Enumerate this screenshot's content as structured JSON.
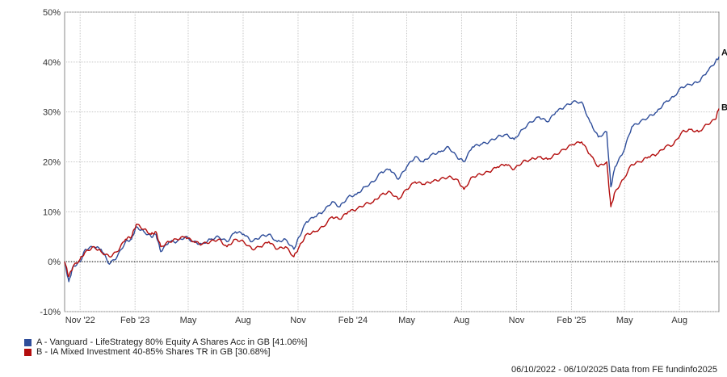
{
  "chart_data": {
    "type": "line",
    "xlabel": "",
    "ylabel": "",
    "ylim": [
      -10,
      50
    ],
    "y_ticks": [
      "-10%",
      "0%",
      "10%",
      "20%",
      "30%",
      "40%",
      "50%"
    ],
    "x_ticks": [
      "Nov '22",
      "Feb '23",
      "May",
      "Aug",
      "Nov",
      "Feb '24",
      "May",
      "Aug",
      "Nov",
      "Feb '25",
      "May",
      "Aug"
    ],
    "x_tick_dates": [
      "2022-11-01",
      "2023-02-01",
      "2023-05-01",
      "2023-08-01",
      "2023-11-01",
      "2024-02-01",
      "2024-05-01",
      "2024-08-01",
      "2024-11-01",
      "2025-02-01",
      "2025-05-01",
      "2025-08-01"
    ],
    "x_range": [
      "2022-10-06",
      "2025-10-06"
    ],
    "grid": true,
    "series": [
      {
        "name": "A - Vanguard - LifeStrategy 80% Equity A Shares Acc in GB [41.06%]",
        "label": "A",
        "color": "#2e4d9a",
        "points": [
          [
            "2022-10-06",
            0
          ],
          [
            "2022-10-13",
            -4
          ],
          [
            "2022-10-20",
            -1
          ],
          [
            "2022-11-01",
            0
          ],
          [
            "2022-11-10",
            2.5
          ],
          [
            "2022-11-24",
            3
          ],
          [
            "2022-12-06",
            2.5
          ],
          [
            "2022-12-20",
            -0.5
          ],
          [
            "2023-01-02",
            1
          ],
          [
            "2023-01-16",
            4
          ],
          [
            "2023-01-26",
            4.5
          ],
          [
            "2023-02-03",
            7
          ],
          [
            "2023-02-16",
            6
          ],
          [
            "2023-02-28",
            5
          ],
          [
            "2023-03-08",
            5.5
          ],
          [
            "2023-03-16",
            2
          ],
          [
            "2023-03-30",
            4
          ],
          [
            "2023-04-12",
            4
          ],
          [
            "2023-04-26",
            5
          ],
          [
            "2023-05-10",
            4
          ],
          [
            "2023-05-24",
            3.5
          ],
          [
            "2023-06-07",
            4.5
          ],
          [
            "2023-06-21",
            5
          ],
          [
            "2023-07-05",
            4
          ],
          [
            "2023-07-19",
            6
          ],
          [
            "2023-08-02",
            5.5
          ],
          [
            "2023-08-16",
            4
          ],
          [
            "2023-08-30",
            5
          ],
          [
            "2023-09-13",
            5.5
          ],
          [
            "2023-09-27",
            4
          ],
          [
            "2023-10-11",
            4.5
          ],
          [
            "2023-10-25",
            2.5
          ],
          [
            "2023-11-03",
            5
          ],
          [
            "2023-11-15",
            8
          ],
          [
            "2023-11-29",
            9
          ],
          [
            "2023-12-13",
            10
          ],
          [
            "2023-12-28",
            12
          ],
          [
            "2024-01-10",
            11
          ],
          [
            "2024-01-24",
            13
          ],
          [
            "2024-02-07",
            13.5
          ],
          [
            "2024-02-21",
            15
          ],
          [
            "2024-03-06",
            16
          ],
          [
            "2024-03-20",
            18
          ],
          [
            "2024-04-03",
            18.5
          ],
          [
            "2024-04-17",
            16.5
          ],
          [
            "2024-05-01",
            19
          ],
          [
            "2024-05-15",
            21
          ],
          [
            "2024-05-29",
            20
          ],
          [
            "2024-06-12",
            21.5
          ],
          [
            "2024-06-26",
            22
          ],
          [
            "2024-07-10",
            23
          ],
          [
            "2024-07-24",
            21
          ],
          [
            "2024-08-05",
            20
          ],
          [
            "2024-08-19",
            23
          ],
          [
            "2024-09-02",
            23.5
          ],
          [
            "2024-09-16",
            24
          ],
          [
            "2024-09-30",
            25
          ],
          [
            "2024-10-14",
            25.5
          ],
          [
            "2024-10-28",
            24.5
          ],
          [
            "2024-11-11",
            26.5
          ],
          [
            "2024-11-25",
            28
          ],
          [
            "2024-12-09",
            29
          ],
          [
            "2024-12-23",
            28
          ],
          [
            "2025-01-06",
            30
          ],
          [
            "2025-01-20",
            31
          ],
          [
            "2025-02-03",
            32
          ],
          [
            "2025-02-18",
            32
          ],
          [
            "2025-03-04",
            28
          ],
          [
            "2025-03-18",
            25
          ],
          [
            "2025-04-01",
            26
          ],
          [
            "2025-04-08",
            15
          ],
          [
            "2025-04-15",
            19
          ],
          [
            "2025-04-29",
            22
          ],
          [
            "2025-05-13",
            27
          ],
          [
            "2025-05-27",
            28
          ],
          [
            "2025-06-10",
            29
          ],
          [
            "2025-06-24",
            30
          ],
          [
            "2025-07-08",
            32
          ],
          [
            "2025-07-22",
            33
          ],
          [
            "2025-08-05",
            35
          ],
          [
            "2025-08-19",
            35.5
          ],
          [
            "2025-09-02",
            36
          ],
          [
            "2025-09-16",
            38
          ],
          [
            "2025-09-30",
            40
          ],
          [
            "2025-10-06",
            41.06
          ]
        ]
      },
      {
        "name": "B - IA Mixed Investment 40-85% Shares TR in GB [30.68%]",
        "label": "B",
        "color": "#b30d0d",
        "points": [
          [
            "2022-10-06",
            0
          ],
          [
            "2022-10-13",
            -3
          ],
          [
            "2022-10-20",
            -1
          ],
          [
            "2022-11-01",
            0.5
          ],
          [
            "2022-11-10",
            2
          ],
          [
            "2022-11-24",
            3
          ],
          [
            "2022-12-06",
            2
          ],
          [
            "2022-12-20",
            1
          ],
          [
            "2023-01-02",
            2
          ],
          [
            "2023-01-16",
            4.5
          ],
          [
            "2023-01-26",
            5
          ],
          [
            "2023-02-03",
            7.5
          ],
          [
            "2023-02-16",
            6.5
          ],
          [
            "2023-02-28",
            5.5
          ],
          [
            "2023-03-08",
            6
          ],
          [
            "2023-03-16",
            3
          ],
          [
            "2023-03-30",
            4
          ],
          [
            "2023-04-12",
            4.5
          ],
          [
            "2023-04-26",
            5
          ],
          [
            "2023-05-10",
            4
          ],
          [
            "2023-05-24",
            3.5
          ],
          [
            "2023-06-07",
            4
          ],
          [
            "2023-06-21",
            4.5
          ],
          [
            "2023-07-05",
            3
          ],
          [
            "2023-07-19",
            4.5
          ],
          [
            "2023-08-02",
            4
          ],
          [
            "2023-08-16",
            2.5
          ],
          [
            "2023-08-30",
            3
          ],
          [
            "2023-09-13",
            4
          ],
          [
            "2023-09-27",
            2.5
          ],
          [
            "2023-10-11",
            3
          ],
          [
            "2023-10-25",
            1
          ],
          [
            "2023-11-03",
            3
          ],
          [
            "2023-11-15",
            5.5
          ],
          [
            "2023-11-29",
            6
          ],
          [
            "2023-12-13",
            7
          ],
          [
            "2023-12-28",
            9
          ],
          [
            "2024-01-10",
            8.5
          ],
          [
            "2024-01-24",
            10
          ],
          [
            "2024-02-07",
            10.5
          ],
          [
            "2024-02-21",
            11.5
          ],
          [
            "2024-03-06",
            12
          ],
          [
            "2024-03-20",
            13.5
          ],
          [
            "2024-04-03",
            14
          ],
          [
            "2024-04-17",
            12.5
          ],
          [
            "2024-05-01",
            14.5
          ],
          [
            "2024-05-15",
            16
          ],
          [
            "2024-05-29",
            15.5
          ],
          [
            "2024-06-12",
            16
          ],
          [
            "2024-06-26",
            16.5
          ],
          [
            "2024-07-10",
            17
          ],
          [
            "2024-07-24",
            16.5
          ],
          [
            "2024-08-05",
            14.5
          ],
          [
            "2024-08-19",
            17
          ],
          [
            "2024-09-02",
            17.5
          ],
          [
            "2024-09-16",
            18
          ],
          [
            "2024-09-30",
            19
          ],
          [
            "2024-10-14",
            19.5
          ],
          [
            "2024-10-28",
            18.5
          ],
          [
            "2024-11-11",
            20
          ],
          [
            "2024-11-25",
            20.5
          ],
          [
            "2024-12-09",
            21
          ],
          [
            "2024-12-23",
            20.5
          ],
          [
            "2025-01-06",
            21.5
          ],
          [
            "2025-01-20",
            22.5
          ],
          [
            "2025-02-03",
            23.5
          ],
          [
            "2025-02-18",
            24
          ],
          [
            "2025-03-04",
            21.5
          ],
          [
            "2025-03-18",
            19
          ],
          [
            "2025-04-01",
            20
          ],
          [
            "2025-04-08",
            11
          ],
          [
            "2025-04-15",
            14
          ],
          [
            "2025-04-29",
            16.5
          ],
          [
            "2025-05-13",
            19.5
          ],
          [
            "2025-05-27",
            20
          ],
          [
            "2025-06-10",
            21
          ],
          [
            "2025-06-24",
            21.5
          ],
          [
            "2025-07-08",
            23
          ],
          [
            "2025-07-22",
            23.5
          ],
          [
            "2025-08-05",
            26
          ],
          [
            "2025-08-19",
            26.5
          ],
          [
            "2025-09-02",
            26
          ],
          [
            "2025-09-16",
            27.5
          ],
          [
            "2025-09-30",
            28.5
          ],
          [
            "2025-10-06",
            30.68
          ]
        ]
      }
    ]
  },
  "legend": {
    "items": [
      {
        "label": "A - Vanguard - LifeStrategy 80% Equity A Shares Acc in GB [41.06%]",
        "color": "#2e4d9a"
      },
      {
        "label": "B - IA Mixed Investment 40-85% Shares TR in GB [30.68%]",
        "color": "#b30d0d"
      }
    ]
  },
  "footer": {
    "text": "06/10/2022 - 06/10/2025 Data from FE fundinfo2025"
  }
}
